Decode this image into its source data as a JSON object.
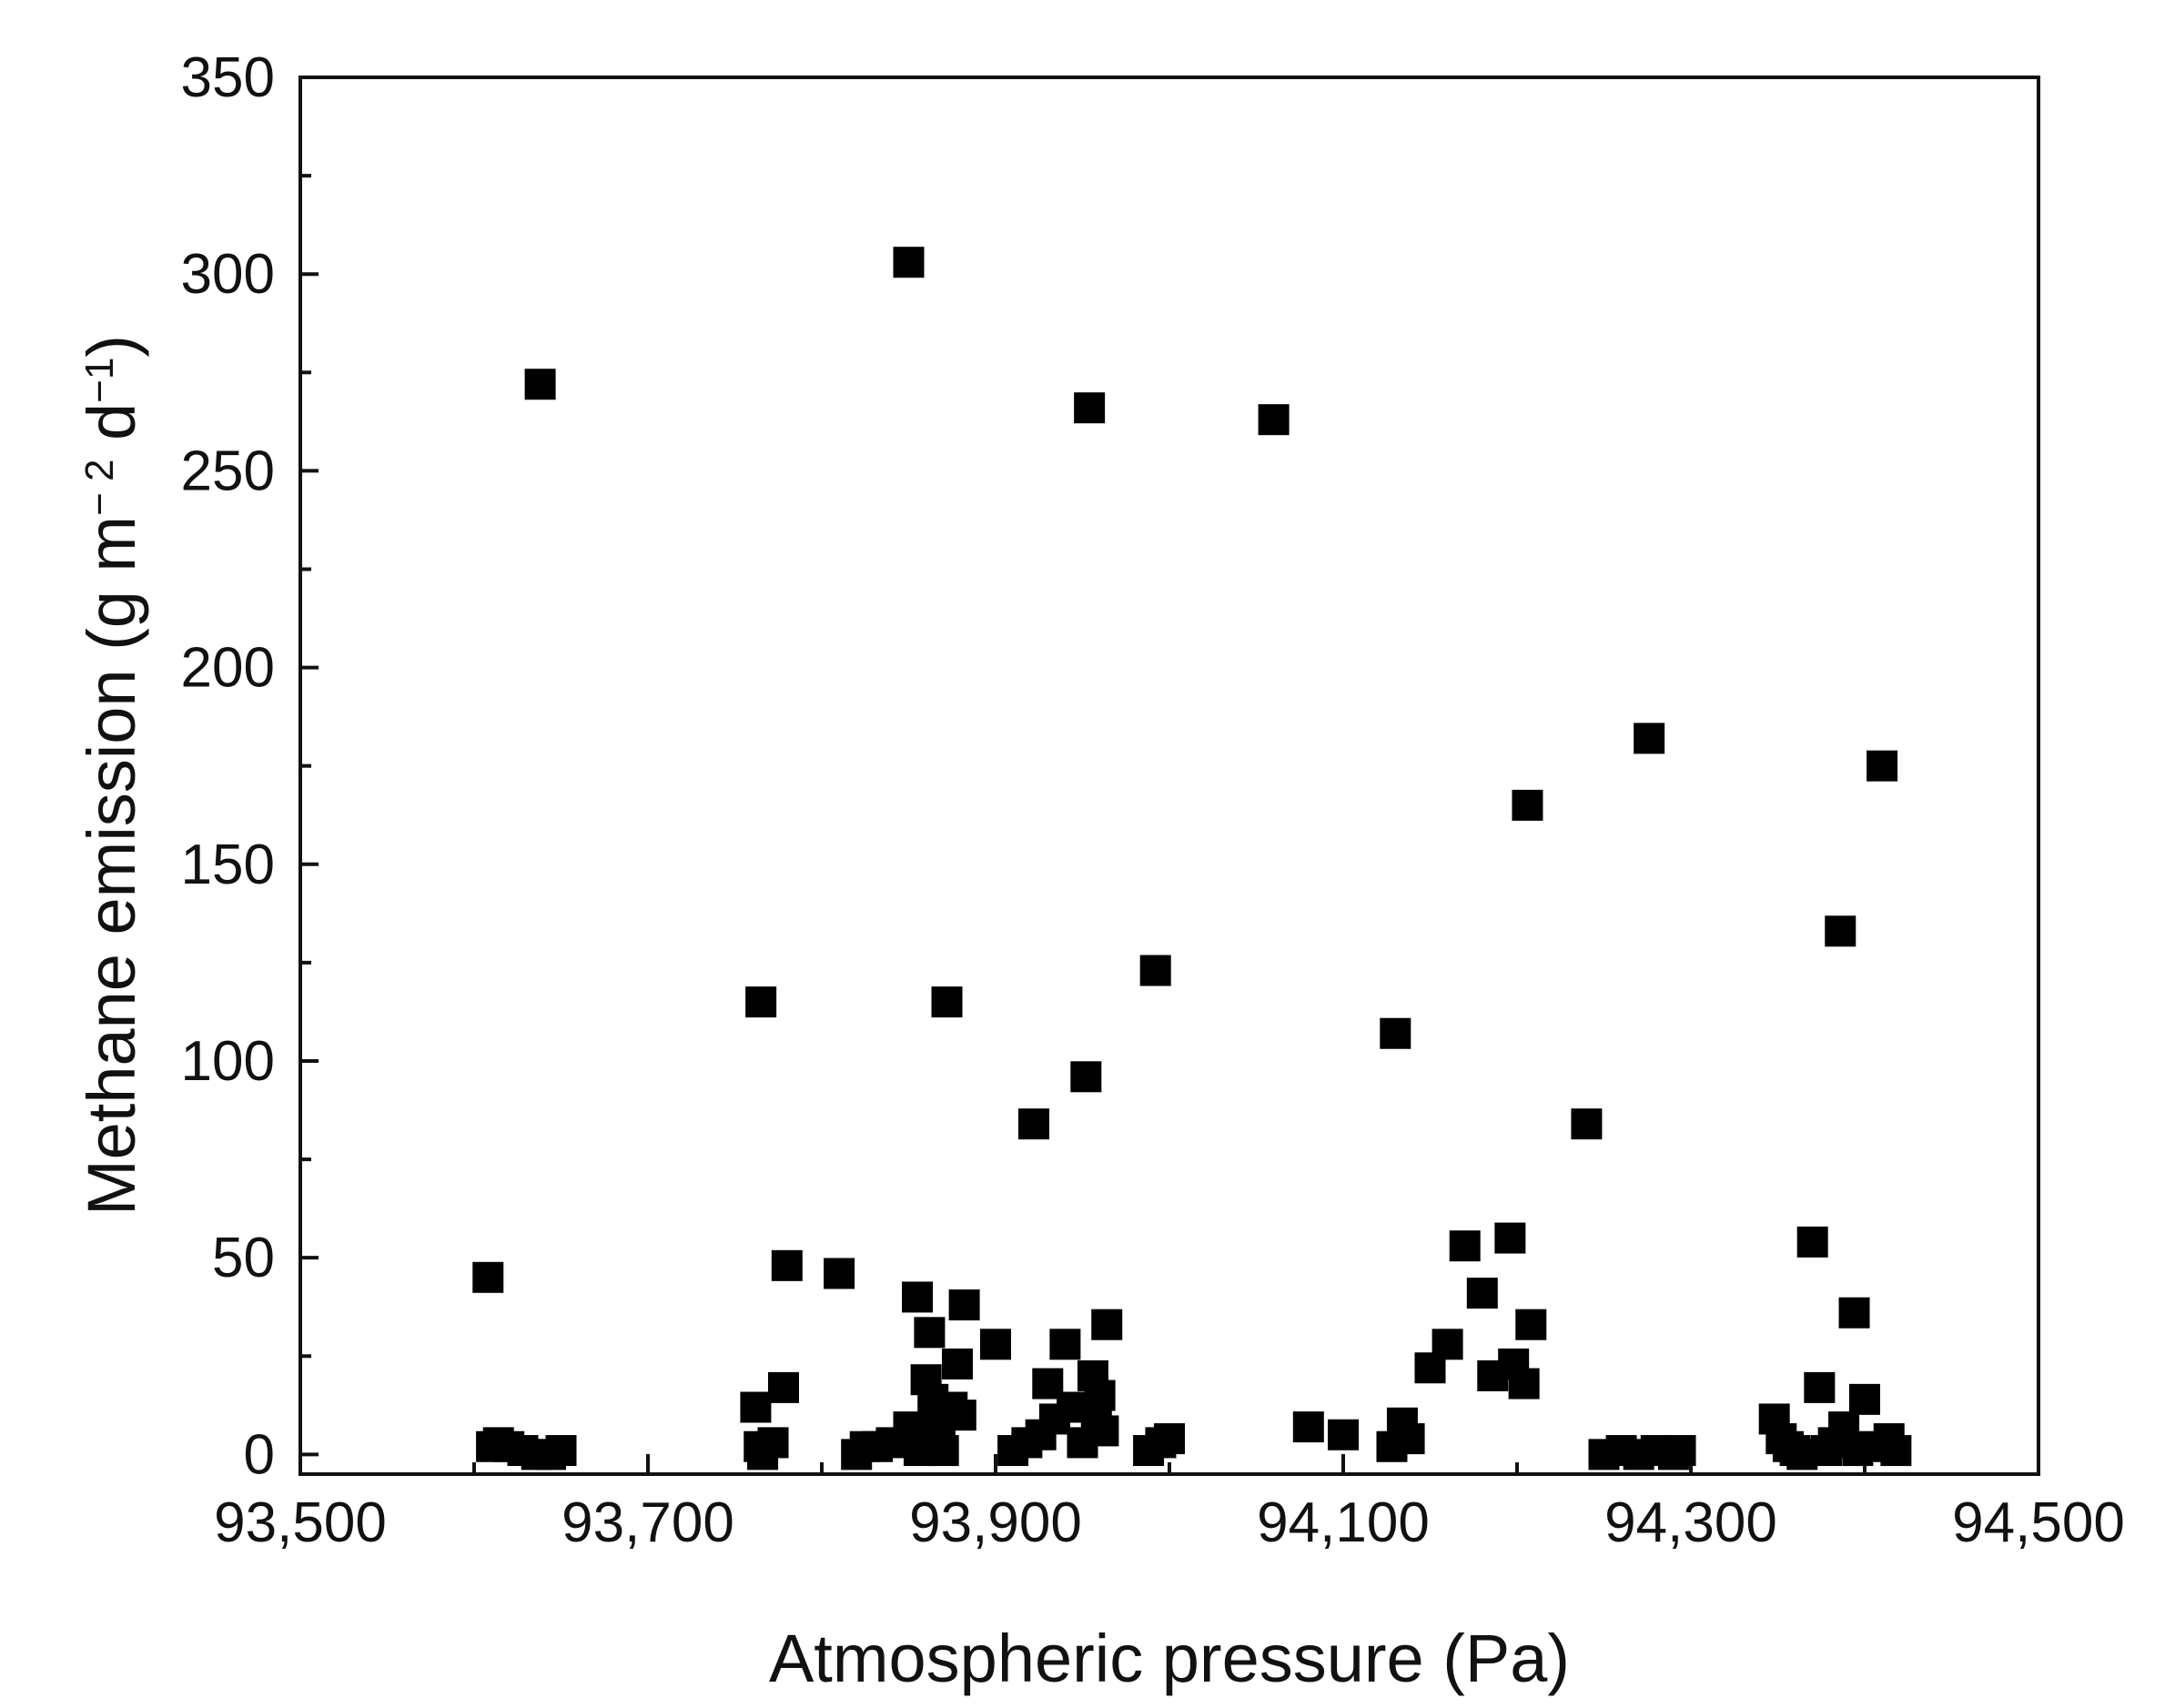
{
  "chart_data": {
    "type": "scatter",
    "xlabel": "Atmospheric pressure (Pa)",
    "ylabel": {
      "main": "Methane emission (g m",
      "exp1": "− 2",
      "mid": " d",
      "exp2": "−1",
      "end": ")"
    },
    "xlim": [
      93500,
      94500
    ],
    "ylim": [
      -5,
      350
    ],
    "x_ticks": [
      93500,
      93700,
      93900,
      94100,
      94300,
      94500
    ],
    "x_tick_labels": [
      "93,500",
      "93,700",
      "93,900",
      "94,100",
      "94,300",
      "94,500"
    ],
    "y_ticks": [
      0,
      50,
      100,
      150,
      200,
      250,
      300,
      350
    ],
    "y_tick_labels": [
      "0",
      "50",
      "100",
      "150",
      "200",
      "250",
      "300",
      "350"
    ],
    "grid": false,
    "marker": "square",
    "marker_color": "#000000",
    "series": [
      {
        "points": [
          [
            93608,
            45
          ],
          [
            93610,
            2
          ],
          [
            93614,
            3
          ],
          [
            93620,
            2
          ],
          [
            93628,
            1
          ],
          [
            93636,
            0
          ],
          [
            93644,
            0
          ],
          [
            93650,
            1
          ],
          [
            93638,
            272
          ],
          [
            93765,
            115
          ],
          [
            93762,
            12
          ],
          [
            93764,
            2
          ],
          [
            93766,
            0
          ],
          [
            93772,
            3
          ],
          [
            93778,
            17
          ],
          [
            93780,
            48
          ],
          [
            93810,
            46
          ],
          [
            93820,
            0
          ],
          [
            93825,
            2
          ],
          [
            93832,
            2
          ],
          [
            93840,
            3
          ],
          [
            93850,
            303
          ],
          [
            93855,
            40
          ],
          [
            93850,
            7
          ],
          [
            93853,
            4
          ],
          [
            93856,
            1
          ],
          [
            93858,
            3
          ],
          [
            93860,
            19
          ],
          [
            93862,
            31
          ],
          [
            93864,
            14
          ],
          [
            93866,
            8
          ],
          [
            93868,
            5
          ],
          [
            93870,
            1
          ],
          [
            93872,
            115
          ],
          [
            93875,
            12
          ],
          [
            93878,
            23
          ],
          [
            93880,
            10
          ],
          [
            93882,
            38
          ],
          [
            93900,
            28
          ],
          [
            93910,
            1
          ],
          [
            93918,
            3
          ],
          [
            93922,
            84
          ],
          [
            93926,
            5
          ],
          [
            93930,
            18
          ],
          [
            93934,
            9
          ],
          [
            93940,
            28
          ],
          [
            93944,
            12
          ],
          [
            93954,
            266
          ],
          [
            93952,
            96
          ],
          [
            93950,
            3
          ],
          [
            93956,
            20
          ],
          [
            93958,
            8
          ],
          [
            93960,
            15
          ],
          [
            93962,
            6
          ],
          [
            93964,
            33
          ],
          [
            93988,
            1
          ],
          [
            93992,
            123
          ],
          [
            93995,
            3
          ],
          [
            94000,
            4
          ],
          [
            94060,
            263
          ],
          [
            94080,
            7
          ],
          [
            94100,
            5
          ],
          [
            94128,
            2
          ],
          [
            94130,
            107
          ],
          [
            94134,
            8
          ],
          [
            94138,
            4
          ],
          [
            94150,
            22
          ],
          [
            94160,
            28
          ],
          [
            94170,
            53
          ],
          [
            94180,
            41
          ],
          [
            94186,
            20
          ],
          [
            94196,
            55
          ],
          [
            94198,
            23
          ],
          [
            94204,
            18
          ],
          [
            94206,
            165
          ],
          [
            94208,
            33
          ],
          [
            94240,
            84
          ],
          [
            94250,
            0
          ],
          [
            94260,
            1
          ],
          [
            94270,
            0
          ],
          [
            94276,
            182
          ],
          [
            94280,
            1
          ],
          [
            94290,
            0
          ],
          [
            94294,
            1
          ],
          [
            94348,
            9
          ],
          [
            94352,
            4
          ],
          [
            94356,
            2
          ],
          [
            94360,
            1
          ],
          [
            94364,
            0
          ],
          [
            94370,
            54
          ],
          [
            94374,
            17
          ],
          [
            94378,
            1
          ],
          [
            94382,
            3
          ],
          [
            94386,
            133
          ],
          [
            94388,
            7
          ],
          [
            94394,
            36
          ],
          [
            94396,
            1
          ],
          [
            94400,
            14
          ],
          [
            94404,
            2
          ],
          [
            94410,
            175
          ],
          [
            94414,
            4
          ],
          [
            94418,
            1
          ]
        ]
      }
    ]
  }
}
